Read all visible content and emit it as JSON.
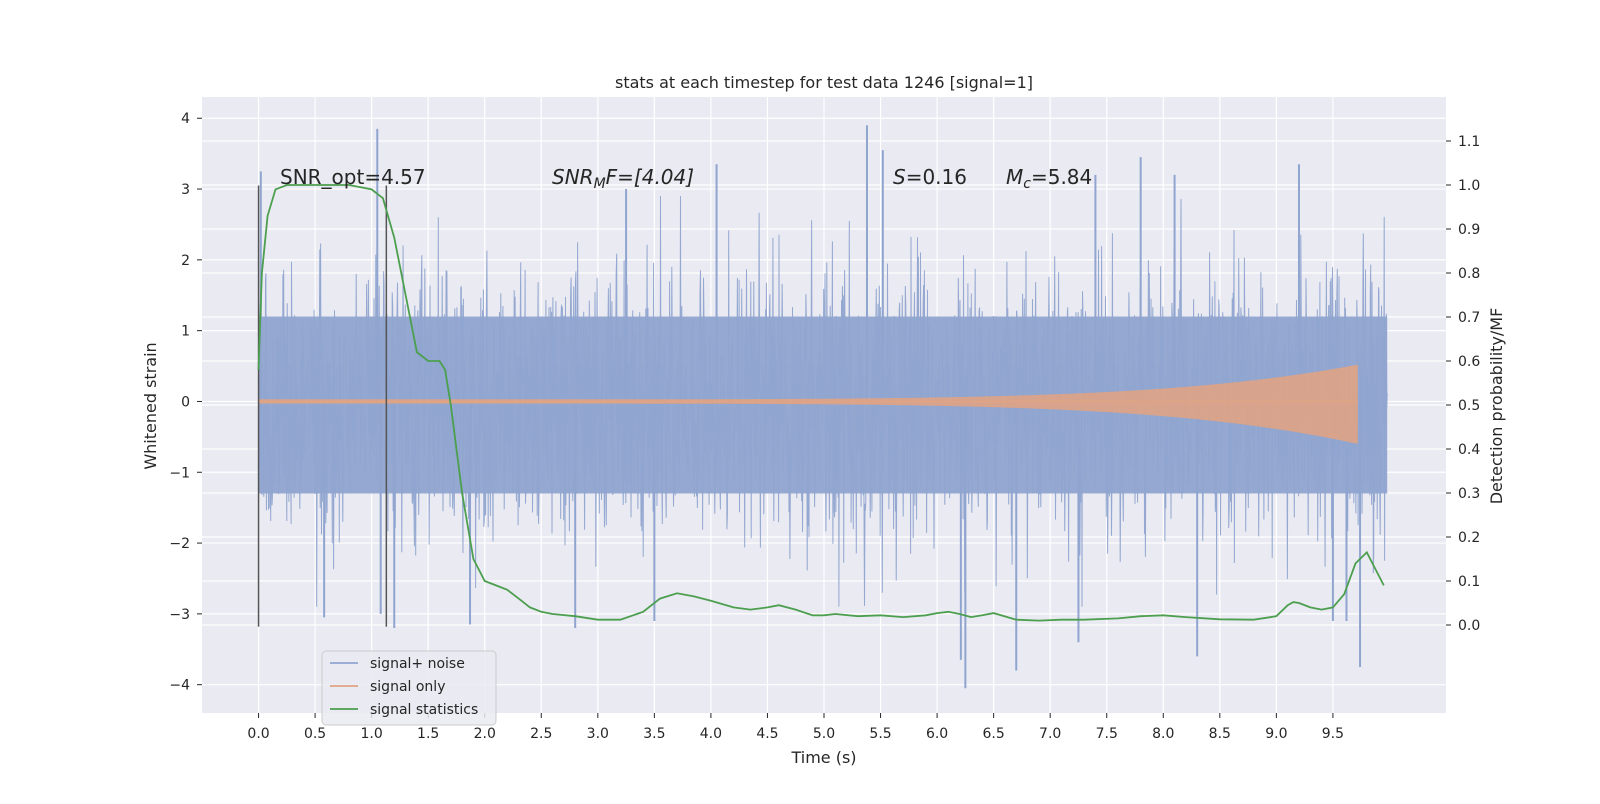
{
  "chart_data": {
    "type": "line",
    "title": "stats at each timestep for test data 1246 [signal=1]",
    "xlabel": "Time (s)",
    "ylabel_left": "Whitened strain",
    "ylabel_right": "Detection probability/MF",
    "xlim": [
      -0.5,
      10.5
    ],
    "ylim_left": [
      -4.4,
      4.3
    ],
    "ylim_right": [
      -0.2,
      1.2
    ],
    "x_ticks": [
      "0.0",
      "0.5",
      "1.0",
      "1.5",
      "2.0",
      "2.5",
      "3.0",
      "3.5",
      "4.0",
      "4.5",
      "5.0",
      "5.5",
      "6.0",
      "6.5",
      "7.0",
      "7.5",
      "8.0",
      "8.5",
      "9.0",
      "9.5"
    ],
    "y_left_ticks": [
      "4",
      "3",
      "2",
      "1",
      "0",
      "−1",
      "−2",
      "−3",
      "−4"
    ],
    "y_right_ticks": [
      "1.1",
      "1.0",
      "0.9",
      "0.8",
      "0.7",
      "0.6",
      "0.5",
      "0.4",
      "0.3",
      "0.2",
      "0.1",
      "0.0"
    ],
    "grid": true,
    "legend_position": "lower-left",
    "annotations": {
      "snr_opt": "SNR_opt=4.57",
      "snr_mf_base": "SNR",
      "snr_mf_sub": "M",
      "snr_mf_rest": "F=[4.04]",
      "s_label": "S",
      "s_rest": "=0.16",
      "mc_base": "M",
      "mc_sub": "c",
      "mc_rest": "=5.84"
    },
    "vertical_markers_x": [
      0.0,
      1.13
    ],
    "series": [
      {
        "name": "signal+ noise",
        "color": "#8fa4cf",
        "axis": "left",
        "x_range": [
          0.0,
          9.98
        ],
        "band_upper": 1.2,
        "band_lower": -1.3,
        "typical_peak_upper": 2.7,
        "typical_peak_lower": -2.7,
        "spikes": [
          {
            "x": 0.02,
            "y": 3.25
          },
          {
            "x": 1.05,
            "y": 3.85
          },
          {
            "x": 1.08,
            "y": -3.0
          },
          {
            "x": 1.2,
            "y": -3.2
          },
          {
            "x": 0.58,
            "y": -3.05
          },
          {
            "x": 1.87,
            "y": -3.15
          },
          {
            "x": 2.8,
            "y": -3.2
          },
          {
            "x": 3.5,
            "y": -3.1
          },
          {
            "x": 5.38,
            "y": 3.9
          },
          {
            "x": 5.52,
            "y": 3.55
          },
          {
            "x": 6.21,
            "y": -3.65
          },
          {
            "x": 6.25,
            "y": -4.05
          },
          {
            "x": 6.7,
            "y": -3.8
          },
          {
            "x": 7.25,
            "y": -3.4
          },
          {
            "x": 7.8,
            "y": 3.45
          },
          {
            "x": 8.3,
            "y": -3.6
          },
          {
            "x": 9.2,
            "y": 3.35
          },
          {
            "x": 9.62,
            "y": -3.1
          },
          {
            "x": 9.74,
            "y": -3.75
          },
          {
            "x": 9.5,
            "y": -3.1
          },
          {
            "x": 4.05,
            "y": 3.35
          },
          {
            "x": 3.25,
            "y": 3.0
          },
          {
            "x": 7.4,
            "y": 3.2
          },
          {
            "x": 8.1,
            "y": 3.2
          }
        ]
      },
      {
        "name": "signal only",
        "color": "#e0a384",
        "axis": "left",
        "x_range": [
          0.0,
          9.72
        ],
        "amplitude_start": 0.03,
        "amplitude_end": 0.52,
        "amplitude_end_lower": -0.6
      },
      {
        "name": "signal statistics",
        "color": "#4c9f4e",
        "axis": "right",
        "x": [
          0.0,
          0.03,
          0.08,
          0.15,
          0.25,
          0.5,
          0.8,
          1.0,
          1.1,
          1.2,
          1.3,
          1.4,
          1.5,
          1.6,
          1.65,
          1.7,
          1.8,
          1.9,
          2.0,
          2.1,
          2.2,
          2.3,
          2.4,
          2.5,
          2.6,
          2.8,
          3.0,
          3.2,
          3.4,
          3.55,
          3.7,
          3.85,
          4.0,
          4.2,
          4.35,
          4.5,
          4.6,
          4.75,
          4.9,
          5.0,
          5.1,
          5.3,
          5.5,
          5.7,
          5.9,
          6.0,
          6.1,
          6.2,
          6.3,
          6.4,
          6.5,
          6.7,
          6.9,
          7.1,
          7.3,
          7.6,
          7.8,
          8.0,
          8.2,
          8.5,
          8.8,
          9.0,
          9.1,
          9.15,
          9.2,
          9.3,
          9.4,
          9.5,
          9.6,
          9.7,
          9.8,
          9.95
        ],
        "y": [
          0.58,
          0.8,
          0.93,
          0.99,
          1.0,
          1.0,
          1.0,
          0.99,
          0.97,
          0.88,
          0.75,
          0.62,
          0.6,
          0.6,
          0.58,
          0.5,
          0.3,
          0.15,
          0.1,
          0.09,
          0.08,
          0.06,
          0.04,
          0.03,
          0.025,
          0.02,
          0.012,
          0.012,
          0.03,
          0.06,
          0.072,
          0.065,
          0.055,
          0.04,
          0.035,
          0.04,
          0.045,
          0.035,
          0.022,
          0.022,
          0.025,
          0.02,
          0.022,
          0.018,
          0.022,
          0.027,
          0.03,
          0.025,
          0.018,
          0.022,
          0.027,
          0.012,
          0.01,
          0.012,
          0.012,
          0.015,
          0.02,
          0.022,
          0.018,
          0.013,
          0.012,
          0.02,
          0.045,
          0.052,
          0.05,
          0.04,
          0.035,
          0.04,
          0.07,
          0.14,
          0.165,
          0.09
        ]
      }
    ]
  }
}
